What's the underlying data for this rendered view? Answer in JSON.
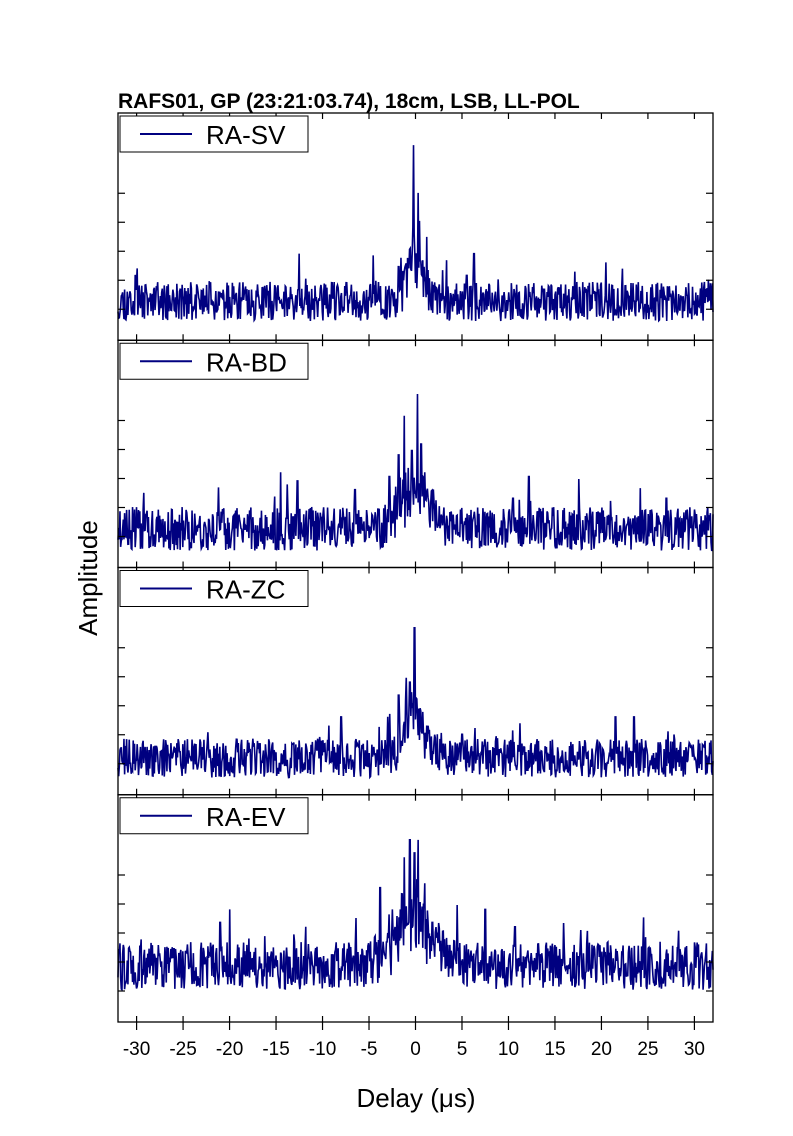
{
  "chart_data": {
    "type": "line",
    "title": "RAFS01, GP (23:21:03.74), 18cm, LSB, LL-POL",
    "xlabel": "Delay (μs)",
    "ylabel": "Amplitude",
    "xlim": [
      -32,
      32
    ],
    "xticks": [
      -30,
      -25,
      -20,
      -15,
      -10,
      -5,
      0,
      5,
      10,
      15,
      20,
      25,
      30
    ],
    "xtick_labels": [
      "-30",
      "-25",
      "-20",
      "-15",
      "-10",
      "-5",
      "0",
      "5",
      "10",
      "15",
      "20",
      "25",
      "30"
    ],
    "ylim": [
      0,
      1
    ],
    "line_color": "#000080",
    "legend_position": "top-left",
    "grid": false,
    "panels": [
      {
        "name": "RA-SV",
        "seed": 11,
        "baseline": 0.16,
        "noise": 0.09,
        "peaks": [
          [
            -1.8,
            0.32
          ],
          [
            -1.2,
            0.3
          ],
          [
            -0.6,
            0.4
          ],
          [
            -0.2,
            0.88
          ],
          [
            0.3,
            0.66
          ],
          [
            0.8,
            0.35
          ],
          [
            5.5,
            0.28
          ],
          [
            6.3,
            0.38
          ],
          [
            -12.5,
            0.38
          ],
          [
            20.5,
            0.34
          ],
          [
            31.5,
            0.26
          ]
        ],
        "width": 0.9
      },
      {
        "name": "RA-BD",
        "seed": 23,
        "baseline": 0.16,
        "noise": 0.1,
        "peaks": [
          [
            -2.8,
            0.4
          ],
          [
            -1.8,
            0.5
          ],
          [
            -1.2,
            0.68
          ],
          [
            -0.4,
            0.52
          ],
          [
            0.2,
            0.78
          ],
          [
            0.6,
            0.55
          ],
          [
            1.0,
            0.42
          ],
          [
            -14.5,
            0.42
          ],
          [
            -12.7,
            0.38
          ],
          [
            -6.5,
            0.34
          ],
          [
            12.2,
            0.4
          ],
          [
            10.5,
            0.3
          ],
          [
            27.0,
            0.3
          ]
        ],
        "width": 1.5
      },
      {
        "name": "RA-ZC",
        "seed": 37,
        "baseline": 0.15,
        "noise": 0.09,
        "peaks": [
          [
            -1.8,
            0.44
          ],
          [
            -1.0,
            0.52
          ],
          [
            -0.6,
            0.5
          ],
          [
            -0.1,
            0.75
          ],
          [
            0.5,
            0.38
          ],
          [
            -8.0,
            0.34
          ],
          [
            -9.3,
            0.3
          ],
          [
            5.0,
            0.26
          ],
          [
            21.5,
            0.34
          ],
          [
            23.5,
            0.34
          ]
        ],
        "width": 1.3
      },
      {
        "name": "RA-EV",
        "seed": 59,
        "baseline": 0.24,
        "noise": 0.11,
        "peaks": [
          [
            -3.8,
            0.6
          ],
          [
            -2.5,
            0.5
          ],
          [
            -1.2,
            0.74
          ],
          [
            -0.6,
            0.82
          ],
          [
            -0.1,
            0.76
          ],
          [
            0.3,
            0.82
          ],
          [
            1.0,
            0.62
          ],
          [
            1.8,
            0.44
          ],
          [
            4.5,
            0.52
          ],
          [
            7.5,
            0.5
          ],
          [
            -21.0,
            0.44
          ],
          [
            -20.0,
            0.5
          ],
          [
            10.7,
            0.42
          ],
          [
            -11.8,
            0.42
          ]
        ],
        "width": 2.2
      }
    ]
  }
}
